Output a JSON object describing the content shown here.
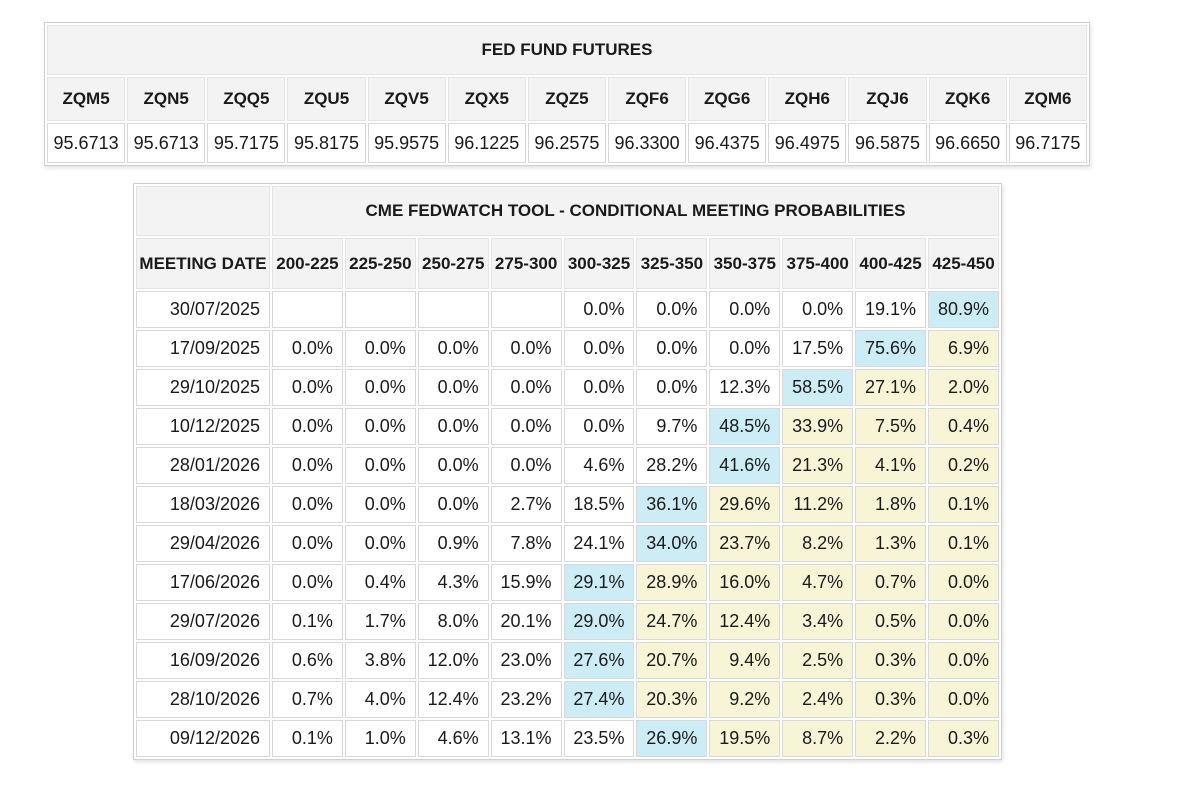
{
  "colors": {
    "highlight_blue": "#cdedf6",
    "highlight_yellow": "#f7f5d6",
    "header_background": "#f3f3f3",
    "cell_border": "#d8d8d8",
    "page_background": "#ffffff"
  },
  "futures_table": {
    "title": "FED FUND FUTURES",
    "columns": [
      "ZQM5",
      "ZQN5",
      "ZQQ5",
      "ZQU5",
      "ZQV5",
      "ZQX5",
      "ZQZ5",
      "ZQF6",
      "ZQG6",
      "ZQH6",
      "ZQJ6",
      "ZQK6",
      "ZQM6"
    ],
    "values": [
      "95.6713",
      "95.6713",
      "95.7175",
      "95.8175",
      "95.9575",
      "96.1225",
      "96.2575",
      "96.3300",
      "96.4375",
      "96.4975",
      "96.5875",
      "96.6650",
      "96.7175"
    ]
  },
  "fedwatch_table": {
    "title": "CME FEDWATCH TOOL - CONDITIONAL MEETING PROBABILITIES",
    "date_header": "MEETING DATE",
    "rate_bins": [
      "200-225",
      "225-250",
      "250-275",
      "275-300",
      "300-325",
      "325-350",
      "350-375",
      "375-400",
      "400-425",
      "425-450"
    ],
    "style_legend": {
      "w": "white",
      "b": "blue-highlight",
      "y": "yellow-highlight",
      "e": "empty"
    },
    "rows": [
      {
        "date": "30/07/2025",
        "values": [
          "",
          "",
          "",
          "",
          "0.0%",
          "0.0%",
          "0.0%",
          "0.0%",
          "19.1%",
          "80.9%"
        ],
        "styles": [
          "e",
          "e",
          "e",
          "e",
          "w",
          "w",
          "w",
          "w",
          "w",
          "b"
        ]
      },
      {
        "date": "17/09/2025",
        "values": [
          "0.0%",
          "0.0%",
          "0.0%",
          "0.0%",
          "0.0%",
          "0.0%",
          "0.0%",
          "17.5%",
          "75.6%",
          "6.9%"
        ],
        "styles": [
          "w",
          "w",
          "w",
          "w",
          "w",
          "w",
          "w",
          "w",
          "b",
          "y"
        ]
      },
      {
        "date": "29/10/2025",
        "values": [
          "0.0%",
          "0.0%",
          "0.0%",
          "0.0%",
          "0.0%",
          "0.0%",
          "12.3%",
          "58.5%",
          "27.1%",
          "2.0%"
        ],
        "styles": [
          "w",
          "w",
          "w",
          "w",
          "w",
          "w",
          "w",
          "b",
          "y",
          "y"
        ]
      },
      {
        "date": "10/12/2025",
        "values": [
          "0.0%",
          "0.0%",
          "0.0%",
          "0.0%",
          "0.0%",
          "9.7%",
          "48.5%",
          "33.9%",
          "7.5%",
          "0.4%"
        ],
        "styles": [
          "w",
          "w",
          "w",
          "w",
          "w",
          "w",
          "b",
          "y",
          "y",
          "y"
        ]
      },
      {
        "date": "28/01/2026",
        "values": [
          "0.0%",
          "0.0%",
          "0.0%",
          "0.0%",
          "4.6%",
          "28.2%",
          "41.6%",
          "21.3%",
          "4.1%",
          "0.2%"
        ],
        "styles": [
          "w",
          "w",
          "w",
          "w",
          "w",
          "w",
          "b",
          "y",
          "y",
          "y"
        ]
      },
      {
        "date": "18/03/2026",
        "values": [
          "0.0%",
          "0.0%",
          "0.0%",
          "2.7%",
          "18.5%",
          "36.1%",
          "29.6%",
          "11.2%",
          "1.8%",
          "0.1%"
        ],
        "styles": [
          "w",
          "w",
          "w",
          "w",
          "w",
          "b",
          "y",
          "y",
          "y",
          "y"
        ]
      },
      {
        "date": "29/04/2026",
        "values": [
          "0.0%",
          "0.0%",
          "0.9%",
          "7.8%",
          "24.1%",
          "34.0%",
          "23.7%",
          "8.2%",
          "1.3%",
          "0.1%"
        ],
        "styles": [
          "w",
          "w",
          "w",
          "w",
          "w",
          "b",
          "y",
          "y",
          "y",
          "y"
        ]
      },
      {
        "date": "17/06/2026",
        "values": [
          "0.0%",
          "0.4%",
          "4.3%",
          "15.9%",
          "29.1%",
          "28.9%",
          "16.0%",
          "4.7%",
          "0.7%",
          "0.0%"
        ],
        "styles": [
          "w",
          "w",
          "w",
          "w",
          "b",
          "y",
          "y",
          "y",
          "y",
          "y"
        ]
      },
      {
        "date": "29/07/2026",
        "values": [
          "0.1%",
          "1.7%",
          "8.0%",
          "20.1%",
          "29.0%",
          "24.7%",
          "12.4%",
          "3.4%",
          "0.5%",
          "0.0%"
        ],
        "styles": [
          "w",
          "w",
          "w",
          "w",
          "b",
          "y",
          "y",
          "y",
          "y",
          "y"
        ]
      },
      {
        "date": "16/09/2026",
        "values": [
          "0.6%",
          "3.8%",
          "12.0%",
          "23.0%",
          "27.6%",
          "20.7%",
          "9.4%",
          "2.5%",
          "0.3%",
          "0.0%"
        ],
        "styles": [
          "w",
          "w",
          "w",
          "w",
          "b",
          "y",
          "y",
          "y",
          "y",
          "y"
        ]
      },
      {
        "date": "28/10/2026",
        "values": [
          "0.7%",
          "4.0%",
          "12.4%",
          "23.2%",
          "27.4%",
          "20.3%",
          "9.2%",
          "2.4%",
          "0.3%",
          "0.0%"
        ],
        "styles": [
          "w",
          "w",
          "w",
          "w",
          "b",
          "y",
          "y",
          "y",
          "y",
          "y"
        ]
      },
      {
        "date": "09/12/2026",
        "values": [
          "0.1%",
          "1.0%",
          "4.6%",
          "13.1%",
          "23.5%",
          "26.9%",
          "19.5%",
          "8.7%",
          "2.2%",
          "0.3%"
        ],
        "styles": [
          "w",
          "w",
          "w",
          "w",
          "w",
          "b",
          "y",
          "y",
          "y",
          "y"
        ]
      }
    ]
  },
  "chart_data": [
    {
      "type": "table",
      "title": "FED FUND FUTURES",
      "columns": [
        "ZQM5",
        "ZQN5",
        "ZQQ5",
        "ZQU5",
        "ZQV5",
        "ZQX5",
        "ZQZ5",
        "ZQF6",
        "ZQG6",
        "ZQH6",
        "ZQJ6",
        "ZQK6",
        "ZQM6"
      ],
      "rows": [
        [
          95.6713,
          95.6713,
          95.7175,
          95.8175,
          95.9575,
          96.1225,
          96.2575,
          96.33,
          96.4375,
          96.4975,
          96.5875,
          96.665,
          96.7175
        ]
      ]
    },
    {
      "type": "table",
      "title": "CME FEDWATCH TOOL - CONDITIONAL MEETING PROBABILITIES",
      "columns": [
        "MEETING DATE",
        "200-225",
        "225-250",
        "250-275",
        "275-300",
        "300-325",
        "325-350",
        "350-375",
        "375-400",
        "400-425",
        "425-450"
      ],
      "rows": [
        [
          "30/07/2025",
          null,
          null,
          null,
          null,
          0.0,
          0.0,
          0.0,
          0.0,
          19.1,
          80.9
        ],
        [
          "17/09/2025",
          0.0,
          0.0,
          0.0,
          0.0,
          0.0,
          0.0,
          0.0,
          17.5,
          75.6,
          6.9
        ],
        [
          "29/10/2025",
          0.0,
          0.0,
          0.0,
          0.0,
          0.0,
          0.0,
          12.3,
          58.5,
          27.1,
          2.0
        ],
        [
          "10/12/2025",
          0.0,
          0.0,
          0.0,
          0.0,
          0.0,
          9.7,
          48.5,
          33.9,
          7.5,
          0.4
        ],
        [
          "28/01/2026",
          0.0,
          0.0,
          0.0,
          0.0,
          4.6,
          28.2,
          41.6,
          21.3,
          4.1,
          0.2
        ],
        [
          "18/03/2026",
          0.0,
          0.0,
          0.0,
          2.7,
          18.5,
          36.1,
          29.6,
          11.2,
          1.8,
          0.1
        ],
        [
          "29/04/2026",
          0.0,
          0.0,
          0.9,
          7.8,
          24.1,
          34.0,
          23.7,
          8.2,
          1.3,
          0.1
        ],
        [
          "17/06/2026",
          0.0,
          0.4,
          4.3,
          15.9,
          29.1,
          28.9,
          16.0,
          4.7,
          0.7,
          0.0
        ],
        [
          "29/07/2026",
          0.1,
          1.7,
          8.0,
          20.1,
          29.0,
          24.7,
          12.4,
          3.4,
          0.5,
          0.0
        ],
        [
          "16/09/2026",
          0.6,
          3.8,
          12.0,
          23.0,
          27.6,
          20.7,
          9.4,
          2.5,
          0.3,
          0.0
        ],
        [
          "28/10/2026",
          0.7,
          4.0,
          12.4,
          23.2,
          27.4,
          20.3,
          9.2,
          2.4,
          0.3,
          0.0
        ],
        [
          "09/12/2026",
          0.1,
          1.0,
          4.6,
          13.1,
          23.5,
          26.9,
          19.5,
          8.7,
          2.2,
          0.3
        ]
      ],
      "notes": "Values are probabilities in percent; blue cell = highest probability in row, yellow cells = bins above the highest-probability bin",
      "units": "%"
    }
  ]
}
